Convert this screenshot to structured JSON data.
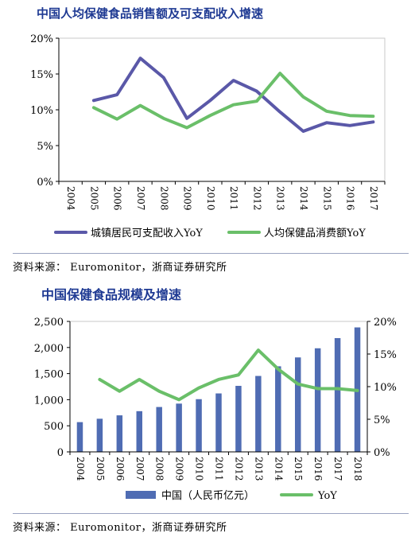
{
  "chart_data": [
    {
      "type": "line",
      "title": "中国人均保健食品销售额及可支配收入增速",
      "x": [
        "2004",
        "2005",
        "2006",
        "2007",
        "2008",
        "2009",
        "2010",
        "2011",
        "2012",
        "2013",
        "2014",
        "2015",
        "2016",
        "2017"
      ],
      "y_ticks": [
        "0%",
        "5%",
        "10%",
        "15%",
        "20%"
      ],
      "ylim": [
        0,
        20
      ],
      "series": [
        {
          "name": "城镇居民可支配收入YoY",
          "color": "#5a58a8",
          "values": [
            null,
            11.3,
            12.1,
            17.2,
            14.5,
            8.8,
            11.3,
            14.1,
            12.6,
            9.7,
            7.0,
            8.2,
            7.8,
            8.3
          ]
        },
        {
          "name": "人均保健品消费额YoY",
          "color": "#6abf69",
          "values": [
            null,
            10.3,
            8.7,
            10.6,
            8.8,
            7.5,
            9.2,
            10.7,
            11.2,
            15.1,
            11.8,
            9.8,
            9.2,
            9.1
          ]
        }
      ],
      "legend": "bottom",
      "grid": false
    },
    {
      "type": "bar+line",
      "title": "中国保健食品规模及增速",
      "x": [
        "2004",
        "2005",
        "2006",
        "2007",
        "2008",
        "2009",
        "2010",
        "2011",
        "2012",
        "2013",
        "2014",
        "2015",
        "2016",
        "2017",
        "2018"
      ],
      "y_left_ticks": [
        "0",
        "500",
        "1,000",
        "1,500",
        "2,000",
        "2,500"
      ],
      "y_left_lim": [
        0,
        2500
      ],
      "y_right_ticks": [
        "0%",
        "5%",
        "10%",
        "15%",
        "20%"
      ],
      "y_right_lim": [
        0,
        20
      ],
      "series": [
        {
          "name": "中国（人民币亿元）",
          "type": "bar",
          "color": "#4f6cb3",
          "axis": "left",
          "values": [
            570,
            635,
            700,
            780,
            860,
            925,
            1010,
            1120,
            1265,
            1455,
            1640,
            1810,
            1985,
            2180,
            2385
          ]
        },
        {
          "name": "YoY",
          "type": "line",
          "color": "#6abf69",
          "axis": "right",
          "values": [
            null,
            11.1,
            9.3,
            11.1,
            9.3,
            8.0,
            9.8,
            11.1,
            11.8,
            15.6,
            12.7,
            10.4,
            9.7,
            9.7,
            9.4
          ]
        }
      ],
      "legend": "bottom",
      "grid": false
    }
  ],
  "source1": "资料来源： Euromonitor，浙商证券研究所",
  "source2": "资料来源： Euromonitor，浙商证券研究所"
}
